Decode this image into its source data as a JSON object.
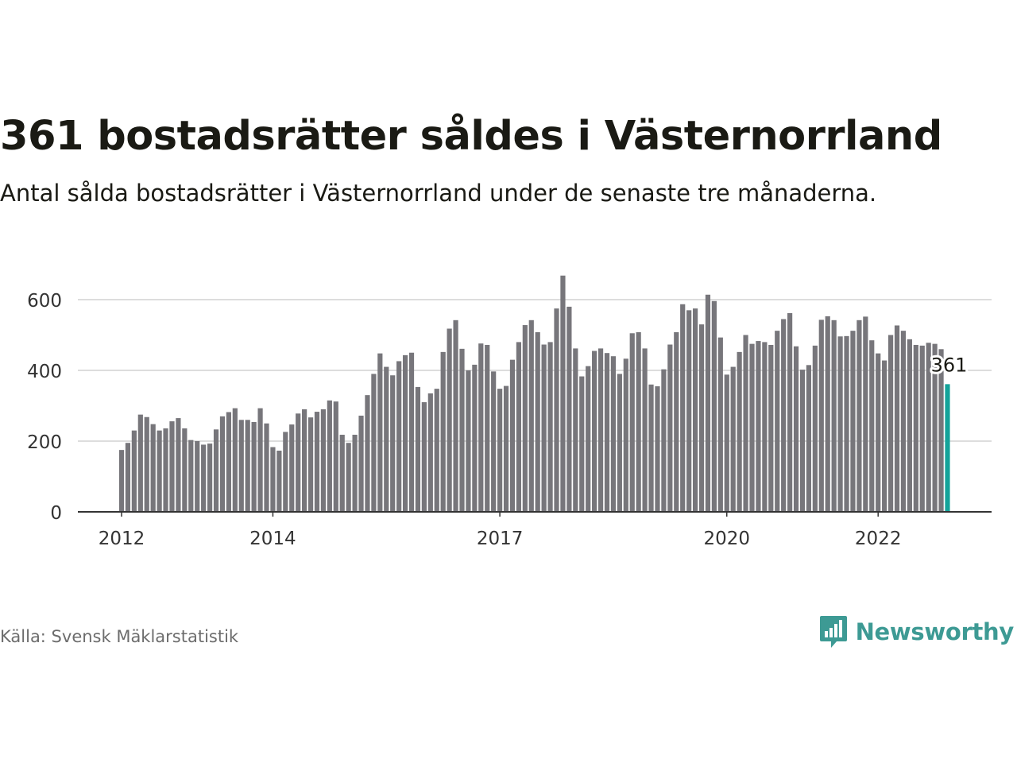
{
  "header": {
    "title": "361 bostadsrätter såldes i Västernorrland",
    "subtitle": "Antal sålda bostadsrätter i Västernorrland under de senaste tre månaderna."
  },
  "footer": {
    "source": "Källa: Svensk Mäklarstatistik",
    "brand": "Newsworthy",
    "brand_icon": "bar-chart-speech-bubble-icon"
  },
  "colors": {
    "bar": "#77767b",
    "highlight": "#14a39a",
    "grid": "#dddddd",
    "axis": "#333333",
    "brand": "#3d9a94"
  },
  "chart_data": {
    "type": "bar",
    "x_start": "2012-01",
    "x_end": "2023-05",
    "x_interval": "month",
    "values": [
      175,
      195,
      230,
      275,
      268,
      248,
      230,
      236,
      256,
      265,
      236,
      203,
      200,
      190,
      193,
      233,
      270,
      282,
      293,
      260,
      260,
      254,
      293,
      250,
      183,
      173,
      226,
      247,
      278,
      290,
      267,
      283,
      290,
      315,
      312,
      218,
      195,
      218,
      272,
      330,
      390,
      448,
      410,
      386,
      426,
      443,
      450,
      353,
      310,
      335,
      348,
      452,
      518,
      542,
      461,
      400,
      416,
      476,
      472,
      397,
      348,
      356,
      430,
      480,
      528,
      542,
      508,
      473,
      480,
      575,
      668,
      580,
      462,
      383,
      412,
      455,
      462,
      449,
      440,
      390,
      433,
      505,
      508,
      462,
      360,
      355,
      403,
      473,
      508,
      587,
      570,
      575,
      530,
      614,
      596,
      493,
      388,
      410,
      452,
      500,
      475,
      483,
      480,
      472,
      512,
      545,
      562,
      468,
      402,
      415,
      470,
      543,
      553,
      542,
      496,
      497,
      512,
      542,
      552,
      485,
      448,
      428,
      500,
      527,
      512,
      488,
      472,
      470,
      478,
      475,
      460,
      361
    ],
    "highlight_label": "361",
    "y_ticks": [
      0,
      200,
      400,
      600
    ],
    "x_ticks": [
      "2012",
      "2014",
      "2017",
      "2020",
      "2022"
    ],
    "ylim": [
      0,
      700
    ],
    "grid": true,
    "legend": "none"
  }
}
